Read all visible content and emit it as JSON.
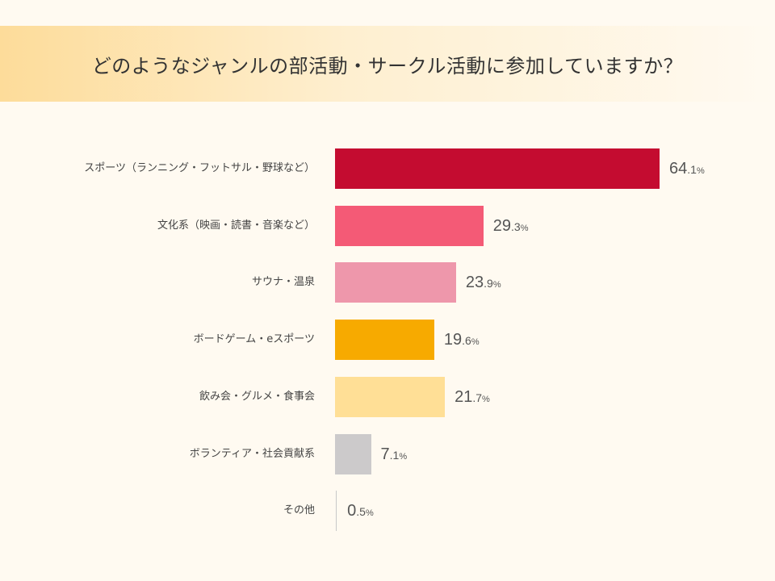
{
  "chart_data": {
    "type": "bar",
    "orientation": "horizontal",
    "title": "どのようなジャンルの部活動・サークル活動に参加していますか？",
    "categories": [
      "スポーツ（ランニング・フットサル・野球など）",
      "文化系（映画・読書・音楽など）",
      "サウナ・温泉",
      "ボードゲーム・eスポーツ",
      "飲み会・グルメ・食事会",
      "ボランティア・社会貢献系",
      "その他"
    ],
    "values": [
      64.1,
      29.3,
      23.9,
      19.6,
      21.7,
      7.1,
      0.5
    ],
    "colors": [
      "#c40c30",
      "#f45a76",
      "#ee97ab",
      "#f7aa00",
      "#ffdf96",
      "#cccacb",
      "#cccacb"
    ],
    "unit": "%",
    "xlim": [
      0,
      100
    ],
    "grid": false,
    "legend": "none"
  }
}
